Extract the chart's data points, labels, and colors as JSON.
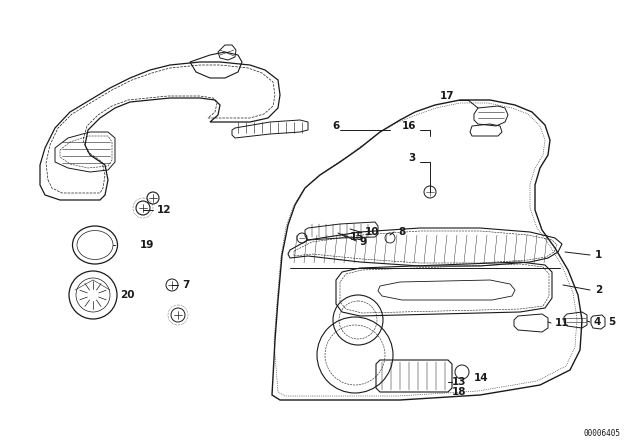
{
  "bg_color": "#ffffff",
  "line_color": "#1a1a1a",
  "diagram_code": "00006405",
  "figsize": [
    6.4,
    4.48
  ],
  "dpi": 100
}
